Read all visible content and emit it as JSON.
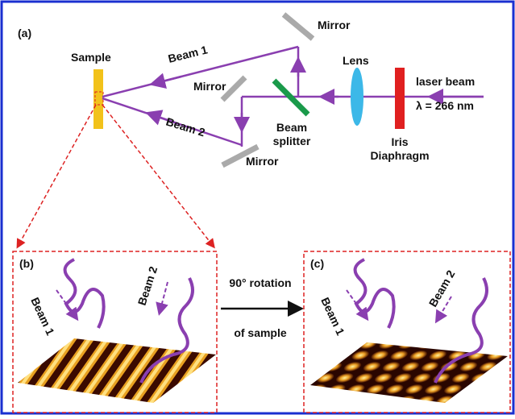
{
  "panel_a": {
    "label": "(a)",
    "sample": "Sample",
    "beam1": "Beam 1",
    "beam2": "Beam 2",
    "mirror_top": "Mirror",
    "mirror_left": "Mirror",
    "mirror_bottom": "Mirror",
    "lens": "Lens",
    "laser": "laser beam",
    "wavelength": "λ = 266 nm",
    "splitter": [
      "Beam",
      "splitter"
    ],
    "iris": [
      "Iris",
      "Diaphragm"
    ]
  },
  "panel_b": {
    "label": "(b)",
    "beam1": "Beam 1",
    "beam2": "Beam 2"
  },
  "panel_c": {
    "label": "(c)",
    "beam1": "Beam 1",
    "beam2": "Beam 2"
  },
  "rotation": [
    "90° rotation",
    "of sample"
  ]
}
